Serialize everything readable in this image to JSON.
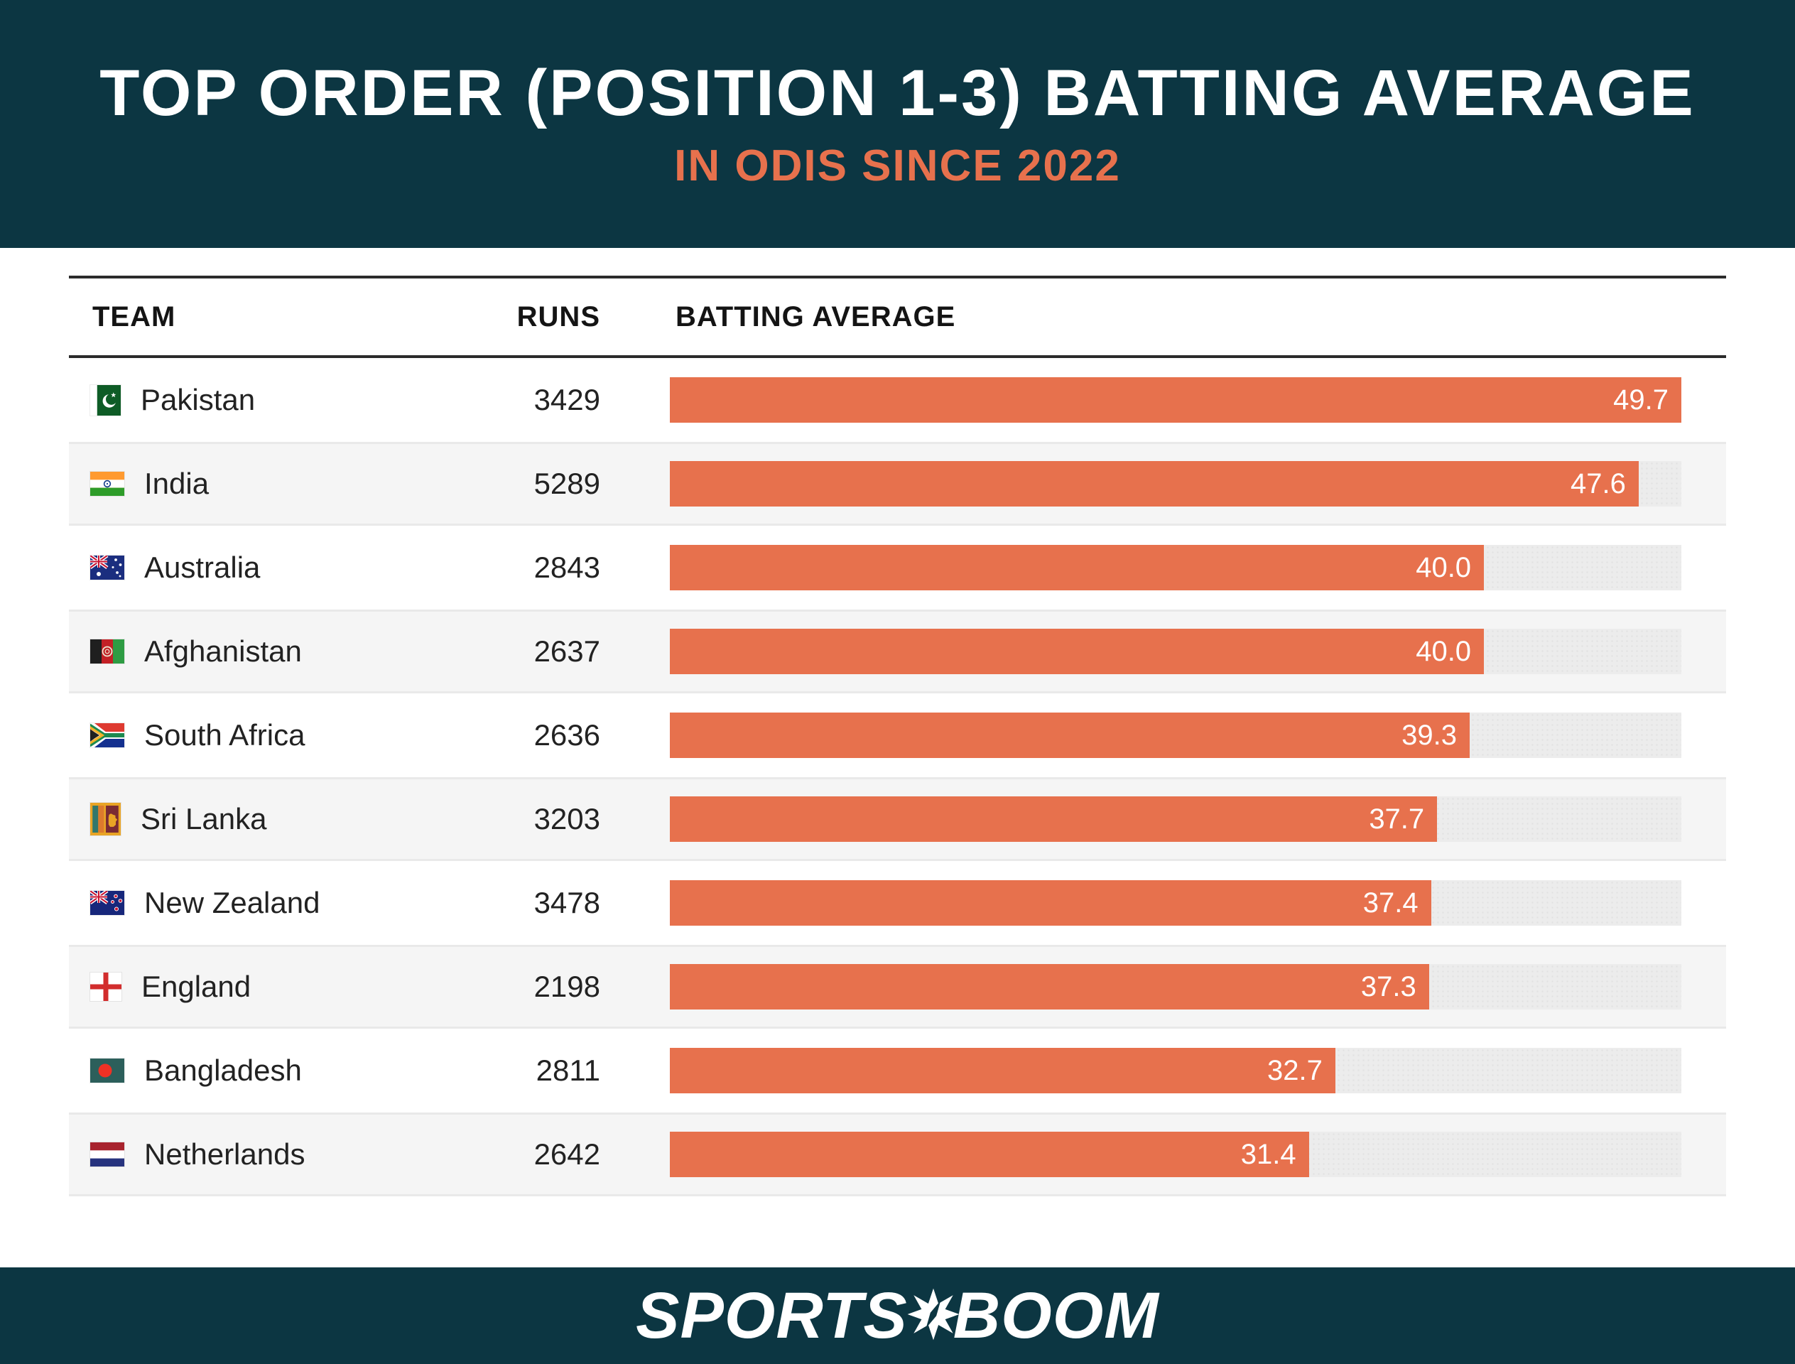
{
  "header": {
    "title": "TOP ORDER (POSITION 1-3) BATTING AVERAGE",
    "subtitle": "IN ODIS SINCE 2022"
  },
  "table": {
    "columns": [
      "TEAM",
      "RUNS",
      "BATTING AVERAGE"
    ],
    "rows": [
      {
        "team": "Pakistan",
        "flag": "pakistan",
        "runs": "3429",
        "average": "49.7"
      },
      {
        "team": "India",
        "flag": "india",
        "runs": "5289",
        "average": "47.6"
      },
      {
        "team": "Australia",
        "flag": "australia",
        "runs": "2843",
        "average": "40.0"
      },
      {
        "team": "Afghanistan",
        "flag": "afghanistan",
        "runs": "2637",
        "average": "40.0"
      },
      {
        "team": "South Africa",
        "flag": "south-africa",
        "runs": "2636",
        "average": "39.3"
      },
      {
        "team": "Sri Lanka",
        "flag": "sri-lanka",
        "runs": "3203",
        "average": "37.7"
      },
      {
        "team": "New Zealand",
        "flag": "new-zealand",
        "runs": "3478",
        "average": "37.4"
      },
      {
        "team": "England",
        "flag": "england",
        "runs": "2198",
        "average": "37.3"
      },
      {
        "team": "Bangladesh",
        "flag": "bangladesh",
        "runs": "2811",
        "average": "32.7"
      },
      {
        "team": "Netherlands",
        "flag": "netherlands",
        "runs": "2642",
        "average": "31.4"
      }
    ]
  },
  "chart_data": {
    "type": "bar",
    "orientation": "horizontal",
    "title": "TOP ORDER (POSITION 1-3) BATTING AVERAGE",
    "subtitle": "IN ODIS SINCE 2022",
    "categories": [
      "Pakistan",
      "India",
      "Australia",
      "Afghanistan",
      "South Africa",
      "Sri Lanka",
      "New Zealand",
      "England",
      "Bangladesh",
      "Netherlands"
    ],
    "series": [
      {
        "name": "Runs",
        "values": [
          3429,
          5289,
          2843,
          2637,
          2636,
          3203,
          3478,
          2198,
          2811,
          2642
        ]
      },
      {
        "name": "Batting Average",
        "values": [
          49.7,
          47.6,
          40.0,
          40.0,
          39.3,
          37.7,
          37.4,
          37.3,
          32.7,
          31.4
        ]
      }
    ],
    "xlim": [
      0,
      49.7
    ],
    "grid": false,
    "legend": false,
    "bar_color": "#E7714D",
    "track_color": "#ECECEC"
  },
  "colors": {
    "header_bg": "#0C3642",
    "accent_orange": "#E7714D",
    "row_alt_bg": "#F5F5F5",
    "rule": "#2B2B2B",
    "text_dark": "#222222",
    "bar_label": "#FFFFFF"
  },
  "footer": {
    "brand_left": "SPORTS",
    "brand_right": "BOOM"
  }
}
